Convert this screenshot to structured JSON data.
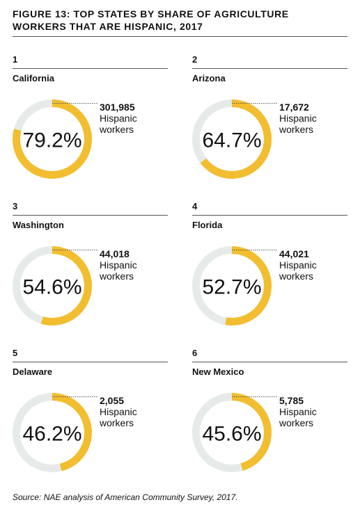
{
  "title": "FIGURE 13: TOP STATES BY SHARE OF AGRICULTURE WORKERS THAT ARE HISPANIC, 2017",
  "source": "Source: NAE analysis of American Community Survey, 2017.",
  "ring_color": "#f2bd2f",
  "track_color": "#e6ebea",
  "chart_data": [
    {
      "type": "donut",
      "rank": "1",
      "title": "California",
      "values": [
        79.2
      ],
      "value_labels": [
        "79.2%"
      ],
      "annotation": [
        "301,985",
        "Hispanic workers"
      ]
    },
    {
      "type": "donut",
      "rank": "2",
      "title": "Arizona",
      "values": [
        64.7
      ],
      "value_labels": [
        "64.7%"
      ],
      "annotation": [
        "17,672",
        "Hispanic workers"
      ]
    },
    {
      "type": "donut",
      "rank": "3",
      "title": "Washington",
      "values": [
        54.6
      ],
      "value_labels": [
        "54.6%"
      ],
      "annotation": [
        "44,018",
        "Hispanic workers"
      ]
    },
    {
      "type": "donut",
      "rank": "4",
      "title": "Florida",
      "values": [
        52.7
      ],
      "value_labels": [
        "52.7%"
      ],
      "annotation": [
        "44,021",
        "Hispanic workers"
      ]
    },
    {
      "type": "donut",
      "rank": "5",
      "title": "Delaware",
      "values": [
        46.2
      ],
      "value_labels": [
        "46.2%"
      ],
      "annotation": [
        "2,055",
        "Hispanic workers"
      ]
    },
    {
      "type": "donut",
      "rank": "6",
      "title": "New Mexico",
      "values": [
        45.6
      ],
      "value_labels": [
        "45.6%"
      ],
      "annotation": [
        "5,785",
        "Hispanic workers"
      ]
    }
  ]
}
